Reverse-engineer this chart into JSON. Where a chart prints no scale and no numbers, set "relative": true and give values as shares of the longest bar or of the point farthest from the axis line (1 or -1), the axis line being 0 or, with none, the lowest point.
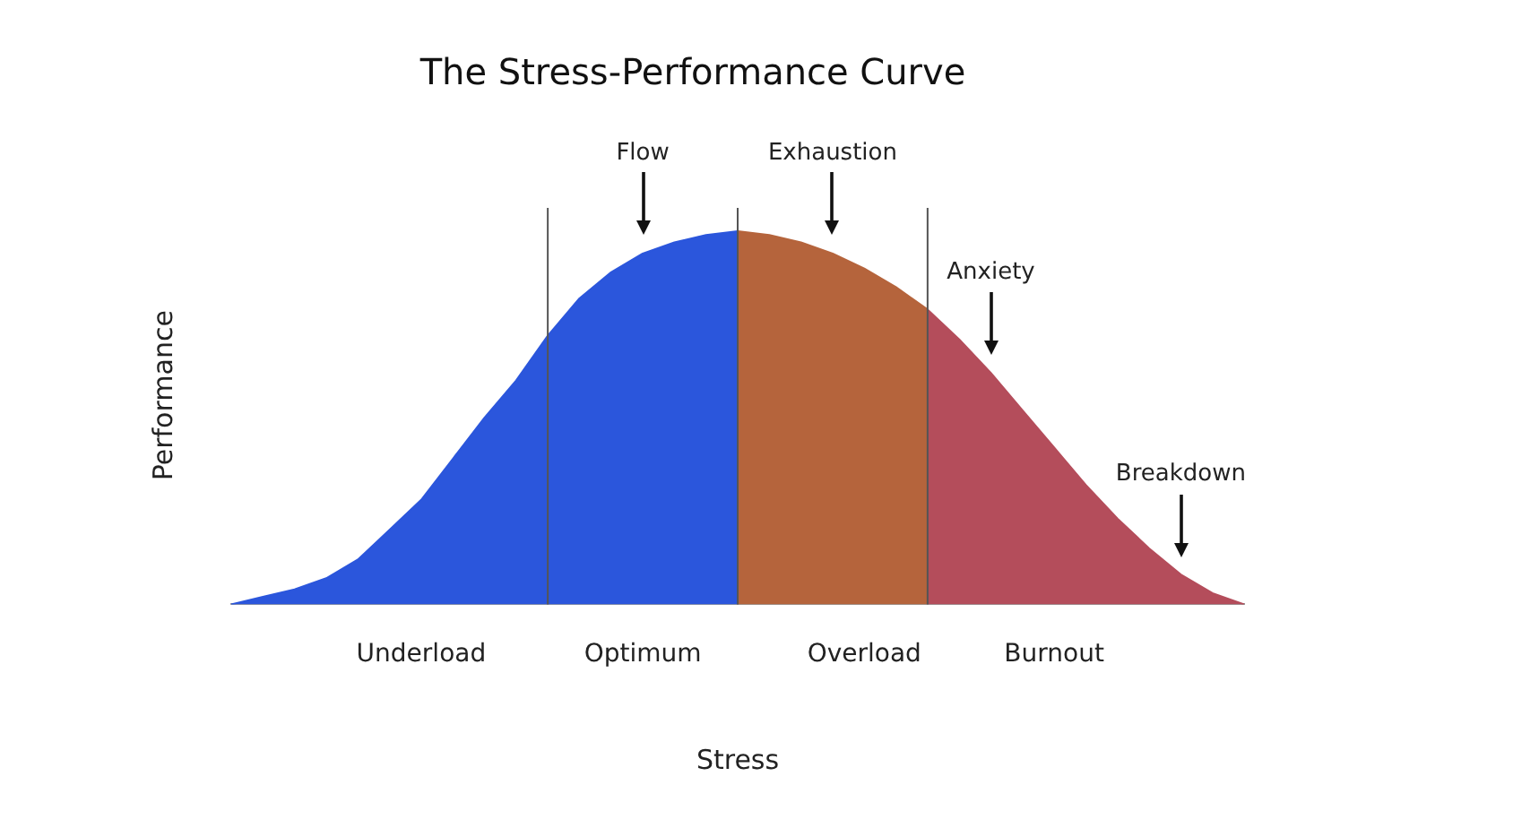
{
  "chart_data": {
    "type": "area",
    "title": "The Stress-Performance Curve",
    "xlabel": "Stress",
    "ylabel": "Performance",
    "relative": true,
    "tick_labels": "x",
    "marker": "none",
    "categories": [
      null,
      null,
      null,
      null,
      null,
      null,
      "Underload",
      null,
      null,
      null,
      null,
      null,
      null,
      "Optimum",
      null,
      null,
      null,
      null,
      null,
      null,
      "Overload",
      null,
      null,
      null,
      null,
      null,
      "Burnout",
      null,
      null,
      null,
      null,
      null,
      null
    ],
    "series": [
      {
        "color": "#2b56dc",
        "values": [
          0,
          0.02,
          0.04,
          0.07,
          0.12,
          0.2,
          0.28,
          0.39,
          0.5,
          0.6,
          0.72,
          null,
          null,
          null,
          null,
          null,
          null,
          null,
          null,
          null,
          null,
          null,
          null,
          null,
          null,
          null,
          null,
          null,
          null,
          null,
          null,
          null,
          null
        ]
      },
      {
        "color": "#2b56dc",
        "values": [
          null,
          null,
          null,
          null,
          null,
          null,
          null,
          null,
          null,
          null,
          0.72,
          0.82,
          0.89,
          0.94,
          0.97,
          0.99,
          1,
          null,
          null,
          null,
          null,
          null,
          null,
          null,
          null,
          null,
          null,
          null,
          null,
          null,
          null,
          null,
          null
        ]
      },
      {
        "color": "#b5643c",
        "values": [
          null,
          null,
          null,
          null,
          null,
          null,
          null,
          null,
          null,
          null,
          null,
          null,
          null,
          null,
          null,
          null,
          1,
          0.99,
          0.97,
          0.94,
          0.9,
          0.85,
          0.79,
          null,
          null,
          null,
          null,
          null,
          null,
          null,
          null,
          null,
          null
        ]
      },
      {
        "color": "#b44d5b",
        "values": [
          null,
          null,
          null,
          null,
          null,
          null,
          null,
          null,
          null,
          null,
          null,
          null,
          null,
          null,
          null,
          null,
          null,
          null,
          null,
          null,
          null,
          null,
          0.79,
          0.71,
          0.62,
          0.52,
          0.42,
          0.32,
          0.23,
          0.15,
          0.08,
          0.03,
          0
        ]
      }
    ],
    "grid": "x",
    "annotations": [
      "Flow",
      "Exhaustion",
      "Anxiety",
      "Breakdown"
    ]
  }
}
